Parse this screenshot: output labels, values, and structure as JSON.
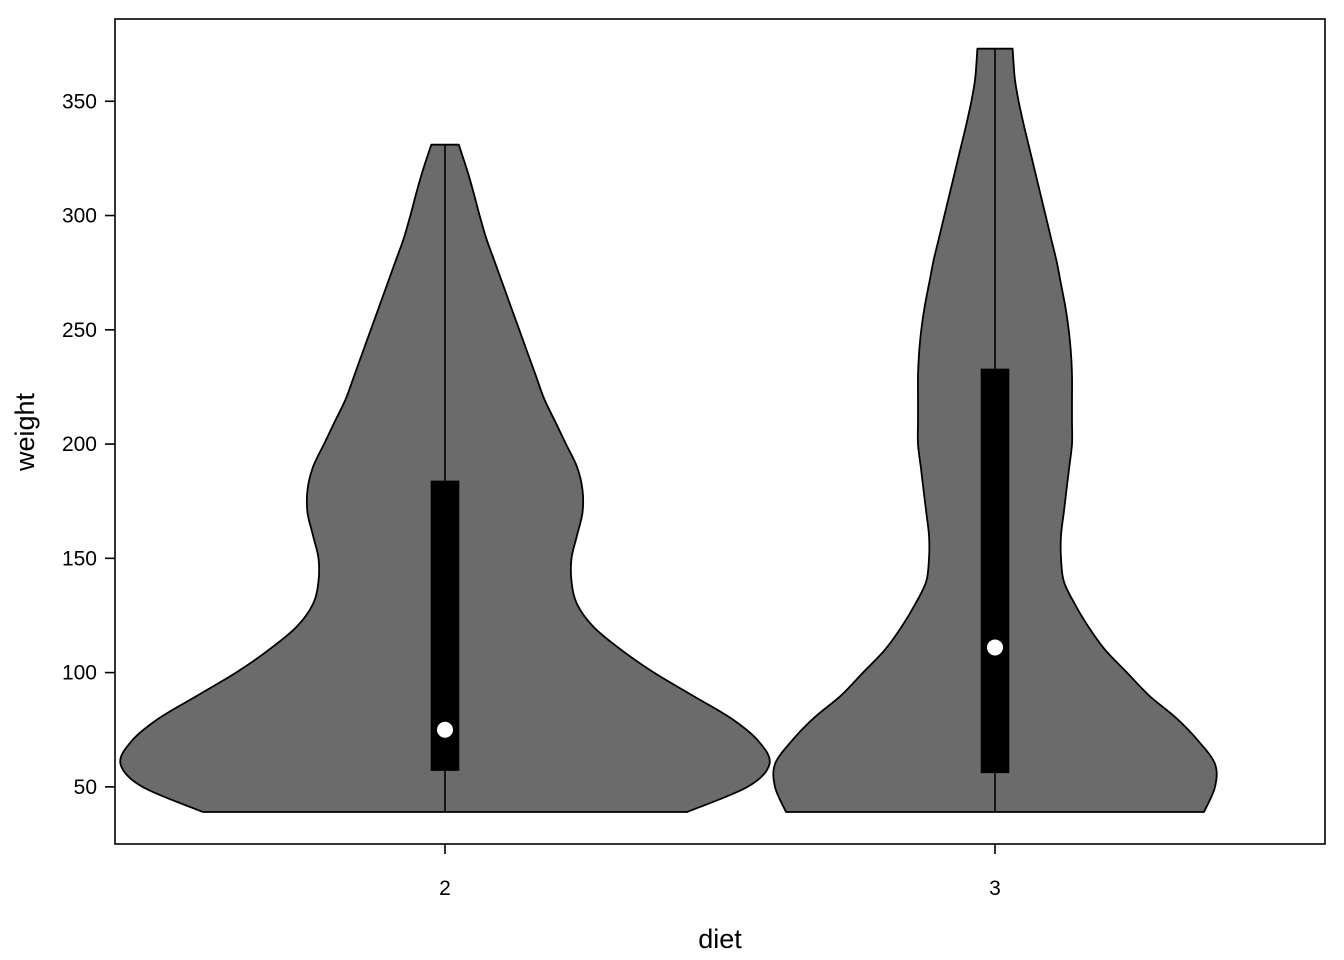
{
  "chart_data": {
    "type": "violin",
    "xlabel": "diet",
    "ylabel": "weight",
    "categories": [
      "2",
      "3"
    ],
    "ylim": [
      25,
      386
    ],
    "yticks": [
      50,
      100,
      150,
      200,
      250,
      300,
      350
    ],
    "grid": false,
    "legend": "none",
    "fill_color": "#6b6b6b",
    "box_color": "#000000",
    "median_color": "#ffffff",
    "violins": [
      {
        "category": "2",
        "min": 39,
        "max": 331,
        "q1": 57,
        "median": 75,
        "q3": 184,
        "profile_weights": [
          39,
          50,
          60,
          70,
          80,
          90,
          100,
          110,
          120,
          130,
          140,
          150,
          160,
          170,
          180,
          190,
          200,
          210,
          220,
          230,
          240,
          250,
          260,
          270,
          280,
          290,
          300,
          310,
          320,
          331
        ],
        "profile_widths": [
          0.44,
          0.55,
          0.59,
          0.57,
          0.52,
          0.45,
          0.38,
          0.32,
          0.27,
          0.24,
          0.23,
          0.23,
          0.24,
          0.25,
          0.25,
          0.24,
          0.22,
          0.2,
          0.18,
          0.165,
          0.15,
          0.135,
          0.12,
          0.105,
          0.09,
          0.075,
          0.063,
          0.052,
          0.04,
          0.025
        ]
      },
      {
        "category": "3",
        "min": 39,
        "max": 373,
        "q1": 56,
        "median": 111,
        "q3": 233,
        "profile_weights": [
          39,
          50,
          60,
          70,
          80,
          90,
          100,
          110,
          120,
          130,
          140,
          150,
          160,
          170,
          180,
          190,
          200,
          210,
          220,
          230,
          240,
          250,
          260,
          270,
          280,
          290,
          300,
          310,
          320,
          330,
          340,
          350,
          360,
          373
        ],
        "profile_widths": [
          0.38,
          0.4,
          0.4,
          0.37,
          0.33,
          0.28,
          0.24,
          0.2,
          0.17,
          0.145,
          0.125,
          0.12,
          0.12,
          0.125,
          0.13,
          0.135,
          0.14,
          0.14,
          0.14,
          0.14,
          0.138,
          0.134,
          0.128,
          0.12,
          0.112,
          0.102,
          0.092,
          0.082,
          0.072,
          0.062,
          0.052,
          0.043,
          0.036,
          0.032
        ]
      }
    ]
  }
}
